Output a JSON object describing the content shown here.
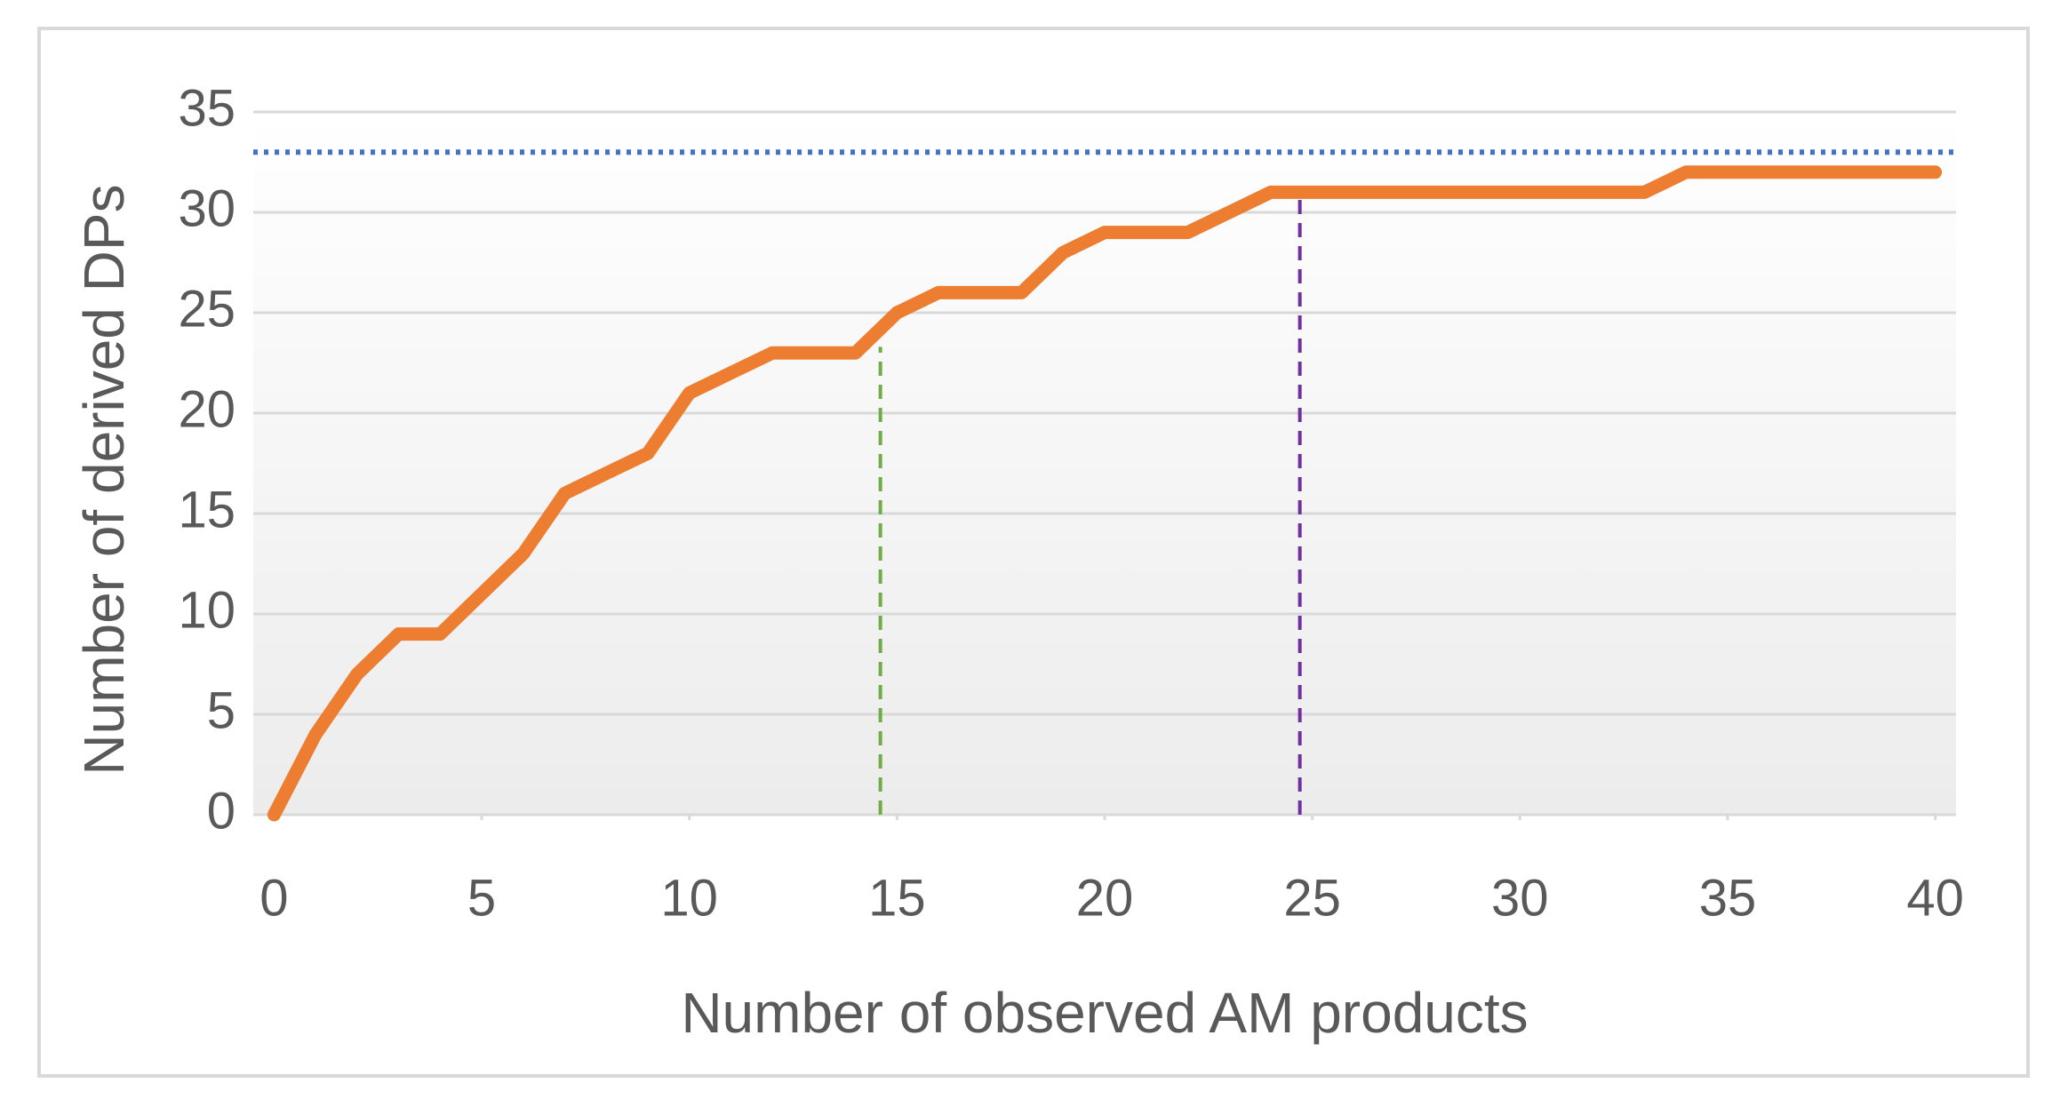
{
  "chart_data": {
    "type": "line",
    "x_label": "Number of observed AM products",
    "y_label": "Number of derived DPs",
    "series": [
      {
        "color": "#ed7d31",
        "x": [
          0,
          1,
          2,
          3,
          4,
          5,
          6,
          7,
          8,
          9,
          10,
          11,
          12,
          13,
          14,
          15,
          16,
          17,
          18,
          19,
          20,
          21,
          22,
          23,
          24,
          25,
          26,
          27,
          28,
          29,
          30,
          31,
          32,
          33,
          34,
          35,
          36,
          37,
          38,
          39,
          40
        ],
        "values": [
          0,
          4,
          7,
          9,
          9,
          11,
          13,
          16,
          17,
          18,
          21,
          22,
          23,
          23,
          23,
          25,
          26,
          26,
          26,
          28,
          29,
          29,
          29,
          30,
          31,
          31,
          31,
          31,
          31,
          31,
          31,
          31,
          31,
          31,
          32,
          32,
          32,
          32,
          32,
          32,
          32
        ]
      }
    ],
    "reference_lines": [
      {
        "orientation": "horizontal",
        "y": 33,
        "color": "#4472c4",
        "style": "dotted"
      },
      {
        "orientation": "vertical",
        "x": 14.6,
        "y_end": 23.3,
        "color": "#70ad47",
        "style": "dashed"
      },
      {
        "orientation": "vertical",
        "x": 24.7,
        "y_end": 31,
        "color": "#7030a0",
        "style": "dashed"
      }
    ],
    "xlim": [
      -0.5,
      40.5
    ],
    "xticks": [
      0,
      5,
      10,
      15,
      20,
      25,
      30,
      35,
      40
    ],
    "ylim": [
      0,
      35
    ],
    "yticks": [
      0,
      5,
      10,
      15,
      20,
      25,
      30,
      35
    ],
    "grid": true
  }
}
